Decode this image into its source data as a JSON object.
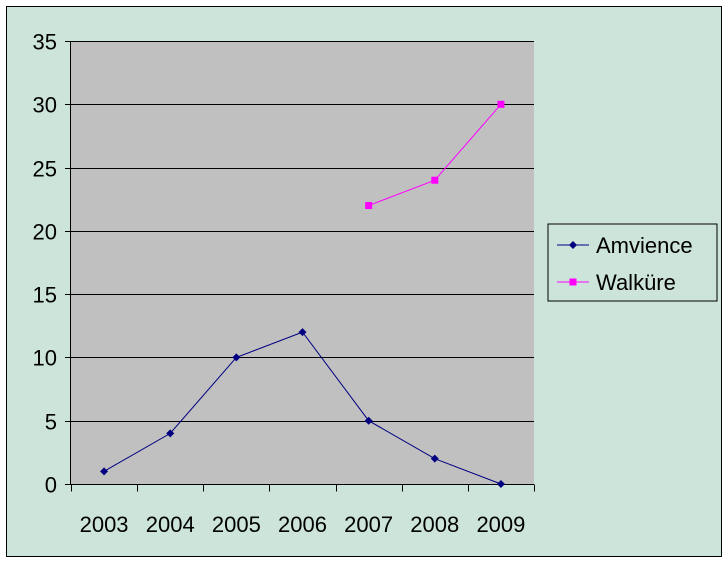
{
  "chart_data": {
    "type": "line",
    "categories": [
      "2003",
      "2004",
      "2005",
      "2006",
      "2007",
      "2008",
      "2009"
    ],
    "series": [
      {
        "name": "Amvience",
        "color": "#000080",
        "marker": "diamond",
        "values": [
          1,
          4,
          10,
          12,
          5,
          2,
          0
        ]
      },
      {
        "name": "Walküre",
        "color": "#ff00ff",
        "marker": "square",
        "values": [
          null,
          null,
          null,
          null,
          22,
          24,
          30
        ]
      }
    ],
    "ylim": [
      0,
      35
    ],
    "yticks": [
      0,
      5,
      10,
      15,
      20,
      25,
      30,
      35
    ],
    "grid": true,
    "legend": "right",
    "colors": {
      "background": "#cce4da",
      "plot_area": "#c0c0c0",
      "gridlines": "#000000"
    }
  }
}
